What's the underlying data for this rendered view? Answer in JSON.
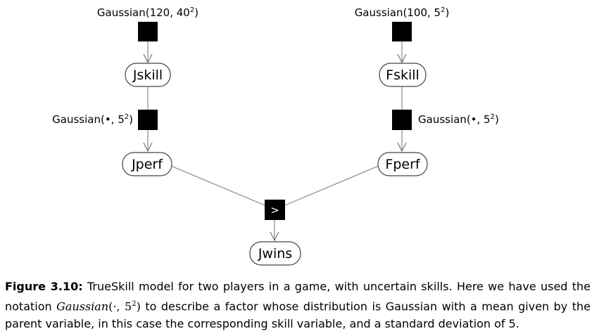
{
  "figure": {
    "nodes": {
      "jskill": "Jskill",
      "fskill": "Fskill",
      "jperf": "Jperf",
      "fperf": "Fperf",
      "jwins": "Jwins"
    },
    "factors": {
      "jskill_prior": {
        "text": "Gaussian(120, 40",
        "exp": "2",
        "close": ")"
      },
      "fskill_prior": {
        "text": "Gaussian(100, 5",
        "exp": "2",
        "close": ")"
      },
      "jperf_noise": {
        "text": "Gaussian(•, 5",
        "exp": "2",
        "close": ")"
      },
      "fperf_noise": {
        "text": "Gaussian(•, 5",
        "exp": "2",
        "close": ")"
      },
      "greater_than": ">"
    }
  },
  "caption": {
    "label": "Figure 3.10:",
    "text_1": " TrueSkill model for two players in a game, with uncertain skills. Here we have used the notation ",
    "math_fn": "Gaussian",
    "math_args": "(·, 5",
    "math_exp": "2",
    "math_close": ")",
    "text_2": " to describe a factor whose distribution is Gaussian with a mean given by the parent variable, in this case the corresponding skill variable, and a standard deviation of 5."
  },
  "colors": {
    "factor_fill": "#000000",
    "edge": "#888888",
    "node_border": "#444444"
  }
}
